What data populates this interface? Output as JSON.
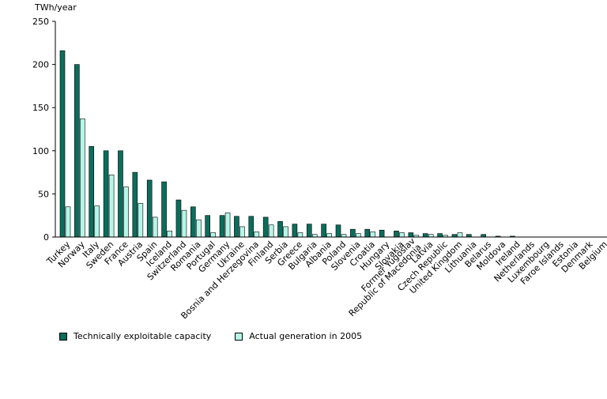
{
  "colors": {
    "capacity": "#0b6d5c",
    "generation": "#b4f6e8",
    "axis": "#000000"
  },
  "chart_data": {
    "type": "bar",
    "ylabel": "TWh/year",
    "ylim": [
      0,
      250
    ],
    "yticks": [
      0,
      50,
      100,
      150,
      200,
      250
    ],
    "grid": false,
    "legend_position": "bottom",
    "categories": [
      "Turkey",
      "Norway",
      "Italy",
      "Sweden",
      "France",
      "Austria",
      "Spain",
      "Iceland",
      "Switzerland",
      "Romania",
      "Portugal",
      "Germany",
      "Ukraine",
      "Bosnia and Herzegovina",
      "Finland",
      "Serbia",
      "Greece",
      "Bulgaria",
      "Albania",
      "Poland",
      "Slovenia",
      "Croatia",
      "Hungary",
      "Slovakia",
      "Former Yugoslav Republic of Macedonia",
      "Latvia",
      "Czech Republic",
      "United Kingdom",
      "Lithuania",
      "Belarus",
      "Moldova",
      "Ireland",
      "Netherlands",
      "Luxembourg",
      "Faroe Islands",
      "Estonia",
      "Denmark",
      "Belgium"
    ],
    "category_lines": {
      "Former Yugoslav Republic of Macedonia": [
        "Former Yugoslav",
        "Republic of Macedonia"
      ]
    },
    "series": [
      {
        "name": "Technically exploitable capacity",
        "color_key": "capacity",
        "values": [
          216,
          200,
          105,
          100,
          100,
          75,
          66,
          64,
          43,
          35,
          25,
          25,
          24,
          24,
          23,
          18,
          15,
          15,
          15,
          14,
          9,
          9,
          8,
          7,
          5,
          4,
          4,
          3,
          3,
          3,
          1,
          1,
          0,
          0,
          0,
          0,
          0,
          0
        ]
      },
      {
        "name": "Actual generation in 2005",
        "color_key": "generation",
        "values": [
          35,
          137,
          36,
          72,
          58,
          39,
          23,
          7,
          31,
          20,
          5,
          28,
          12,
          6,
          14,
          12,
          5,
          3,
          4,
          3,
          4,
          6,
          0,
          5,
          2,
          3,
          2,
          5,
          0,
          0,
          0,
          0,
          0,
          0,
          0,
          0,
          0,
          0
        ]
      }
    ]
  }
}
